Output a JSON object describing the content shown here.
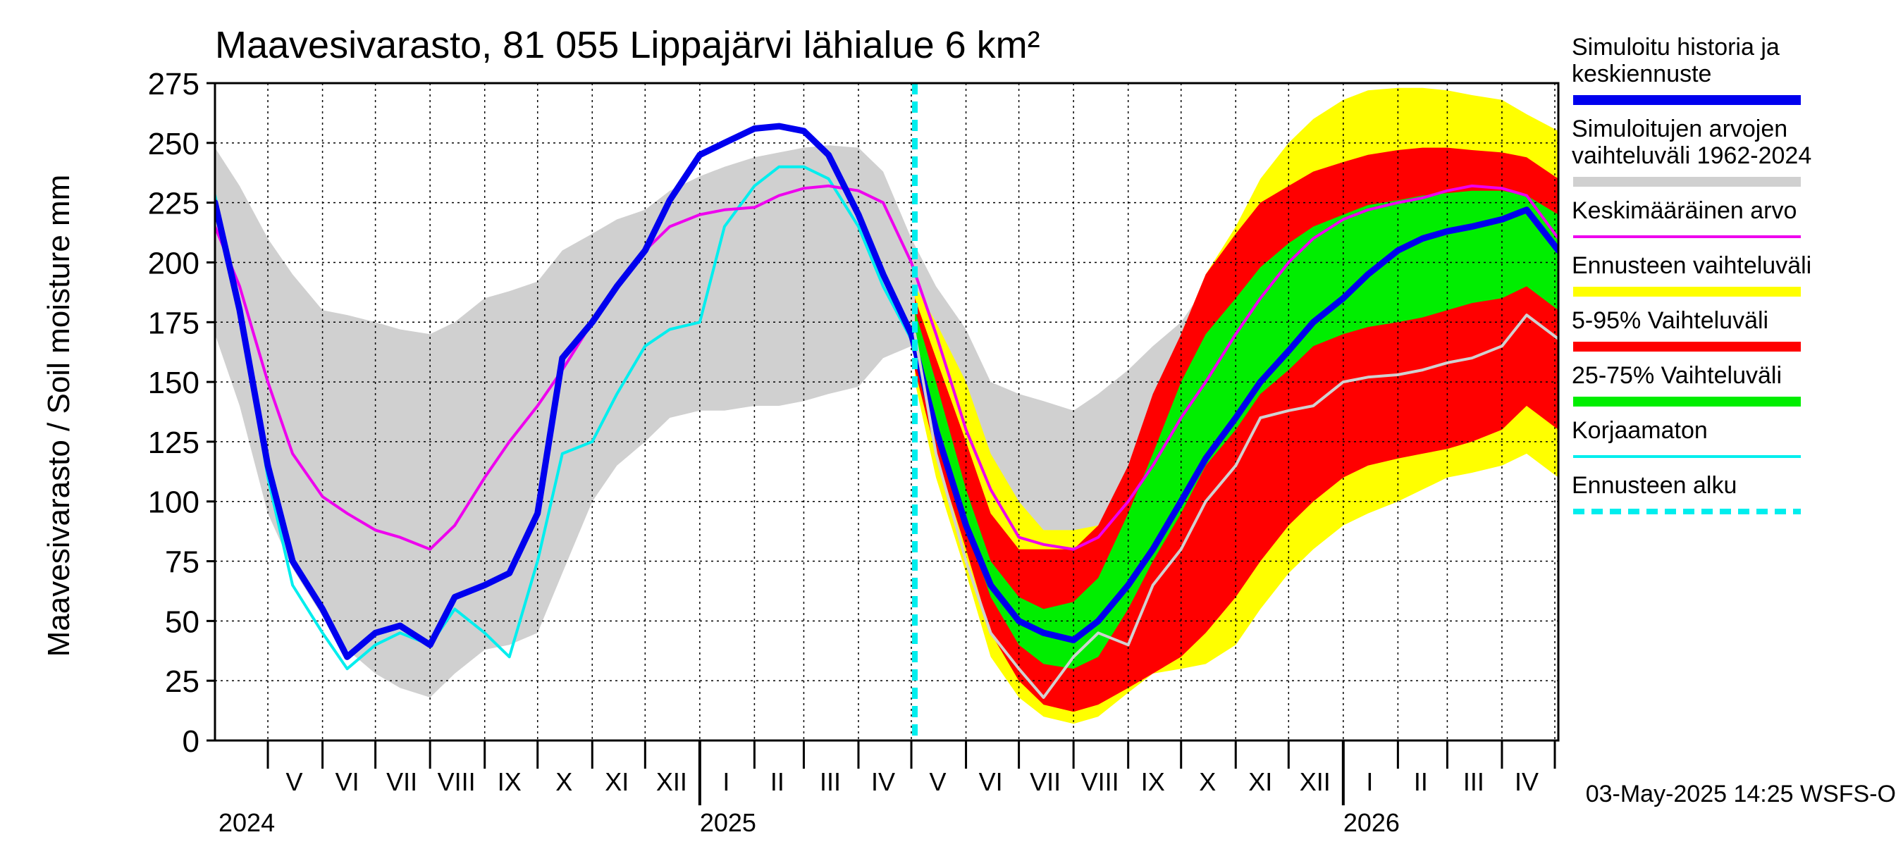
{
  "chart_data": {
    "type": "area",
    "title": "Maavesivarasto, 81 055 Lippajärvi lähialue 6 km²",
    "ylabel": "Maavesivarasto / Soil moisture   mm",
    "xlabel": "",
    "ylim": [
      0,
      275
    ],
    "yticks": [
      0,
      25,
      50,
      75,
      100,
      125,
      150,
      175,
      200,
      225,
      250,
      275
    ],
    "x_range": [
      "2024-04-01",
      "2026-05-03"
    ],
    "grid": true,
    "legend_position": "right",
    "footer": "03-May-2025 14:25 WSFS-O",
    "forecast_start": "2025-05-03",
    "month_labels": [
      {
        "label": "V",
        "date": "2024-05-16"
      },
      {
        "label": "VI",
        "date": "2024-06-15"
      },
      {
        "label": "VII",
        "date": "2024-07-16"
      },
      {
        "label": "VIII",
        "date": "2024-08-16"
      },
      {
        "label": "IX",
        "date": "2024-09-15"
      },
      {
        "label": "X",
        "date": "2024-10-16"
      },
      {
        "label": "XI",
        "date": "2024-11-15"
      },
      {
        "label": "XII",
        "date": "2024-12-16"
      },
      {
        "label": "I",
        "date": "2025-01-16"
      },
      {
        "label": "II",
        "date": "2025-02-14"
      },
      {
        "label": "III",
        "date": "2025-03-16"
      },
      {
        "label": "IV",
        "date": "2025-04-15"
      },
      {
        "label": "V",
        "date": "2025-05-16"
      },
      {
        "label": "VI",
        "date": "2025-06-15"
      },
      {
        "label": "VII",
        "date": "2025-07-16"
      },
      {
        "label": "VIII",
        "date": "2025-08-16"
      },
      {
        "label": "IX",
        "date": "2025-09-15"
      },
      {
        "label": "X",
        "date": "2025-10-16"
      },
      {
        "label": "XI",
        "date": "2025-11-15"
      },
      {
        "label": "XII",
        "date": "2025-12-16"
      },
      {
        "label": "I",
        "date": "2026-01-16"
      },
      {
        "label": "II",
        "date": "2026-02-14"
      },
      {
        "label": "III",
        "date": "2026-03-16"
      },
      {
        "label": "IV",
        "date": "2026-04-15"
      }
    ],
    "month_ticks": [
      "2024-05-01",
      "2024-06-01",
      "2024-07-01",
      "2024-08-01",
      "2024-09-01",
      "2024-10-01",
      "2024-11-01",
      "2024-12-01",
      "2025-01-01",
      "2025-02-01",
      "2025-03-01",
      "2025-04-01",
      "2025-05-01",
      "2025-06-01",
      "2025-07-01",
      "2025-08-01",
      "2025-09-01",
      "2025-10-01",
      "2025-11-01",
      "2025-12-01",
      "2026-01-01",
      "2026-02-01",
      "2026-03-01",
      "2026-04-01",
      "2026-05-01"
    ],
    "year_labels": [
      {
        "label": "2024",
        "date": "2024-04-03"
      },
      {
        "label": "2025",
        "date": "2025-01-01"
      },
      {
        "label": "2026",
        "date": "2026-01-01"
      }
    ],
    "year_ticks": [
      "2025-01-01",
      "2026-01-01"
    ],
    "legend": [
      {
        "label": "Simuloitu historia ja keskiennuste",
        "lines": [
          "Simuloitu historia ja",
          "keskiennuste"
        ],
        "color": "#0000ee",
        "style": "thick"
      },
      {
        "label": "Simuloitujen arvojen vaihteluväli 1962-2024",
        "lines": [
          "Simuloitujen arvojen",
          "vaihteluväli 1962-2024"
        ],
        "color": "#d0d0d0",
        "style": "thick"
      },
      {
        "label": "Keskimääräinen arvo",
        "lines": [
          "Keskimääräinen arvo"
        ],
        "color": "#ee00ee",
        "style": "thin"
      },
      {
        "label": "Ennusteen vaihteluväli",
        "lines": [
          "Ennusteen vaihteluväli"
        ],
        "color": "#ffff00",
        "style": "thick"
      },
      {
        "label": "5-95% Vaihteluväli",
        "lines": [
          "5-95% Vaihteluväli"
        ],
        "color": "#ff0000",
        "style": "thick"
      },
      {
        "label": "25-75% Vaihteluväli",
        "lines": [
          "25-75% Vaihteluväli"
        ],
        "color": "#00ee00",
        "style": "thick"
      },
      {
        "label": "Korjaamaton",
        "lines": [
          "Korjaamaton"
        ],
        "color": "#00eeee",
        "style": "thin"
      },
      {
        "label": "Ennusteen alku",
        "lines": [
          "Ennusteen alku"
        ],
        "color": "#00eeee",
        "style": "dashed"
      }
    ],
    "series": [
      {
        "name": "Simuloitujen arvojen vaihteluväli 1962-2024",
        "kind": "band",
        "color": "#d0d0d0",
        "x": [
          "2024-04-01",
          "2024-04-15",
          "2024-05-01",
          "2024-05-15",
          "2024-06-01",
          "2024-06-15",
          "2024-07-01",
          "2024-07-15",
          "2024-08-01",
          "2024-08-15",
          "2024-09-01",
          "2024-09-15",
          "2024-10-01",
          "2024-10-15",
          "2024-11-01",
          "2024-11-15",
          "2024-12-01",
          "2024-12-15",
          "2025-01-01",
          "2025-01-15",
          "2025-02-01",
          "2025-02-15",
          "2025-03-01",
          "2025-03-15",
          "2025-04-01",
          "2025-04-15",
          "2025-05-01",
          "2025-05-15",
          "2025-06-01",
          "2025-06-15",
          "2025-07-01",
          "2025-07-15",
          "2025-08-01",
          "2025-08-15",
          "2025-09-01",
          "2025-09-15",
          "2025-10-01",
          "2025-10-15",
          "2025-11-01",
          "2025-11-15",
          "2025-12-01",
          "2025-12-15",
          "2026-01-01",
          "2026-01-15",
          "2026-02-01",
          "2026-02-15",
          "2026-03-01",
          "2026-03-15",
          "2026-04-01",
          "2026-04-15",
          "2026-05-03"
        ],
        "upper": [
          248,
          232,
          210,
          195,
          180,
          178,
          175,
          172,
          170,
          175,
          185,
          188,
          192,
          205,
          212,
          218,
          222,
          230,
          236,
          240,
          244,
          246,
          248,
          249,
          248,
          238,
          210,
          190,
          172,
          150,
          145,
          142,
          138,
          145,
          155,
          165,
          175,
          190,
          205,
          218,
          228,
          236,
          240,
          244,
          246,
          248,
          249,
          250,
          248,
          240,
          235
        ],
        "lower": [
          170,
          140,
          95,
          72,
          52,
          38,
          28,
          22,
          18,
          28,
          38,
          40,
          45,
          70,
          100,
          115,
          125,
          135,
          138,
          138,
          140,
          140,
          142,
          145,
          148,
          160,
          165,
          150,
          120,
          70,
          40,
          28,
          22,
          25,
          30,
          35,
          45,
          60,
          80,
          95,
          110,
          120,
          130,
          138,
          140,
          142,
          145,
          148,
          150,
          160,
          165
        ]
      },
      {
        "name": "Ennusteen vaihteluväli",
        "kind": "band",
        "color": "#ffff00",
        "x": [
          "2025-05-03",
          "2025-05-15",
          "2025-06-01",
          "2025-06-15",
          "2025-07-01",
          "2025-07-15",
          "2025-08-01",
          "2025-08-15",
          "2025-09-01",
          "2025-09-15",
          "2025-10-01",
          "2025-10-15",
          "2025-11-01",
          "2025-11-15",
          "2025-12-01",
          "2025-12-15",
          "2026-01-01",
          "2026-01-15",
          "2026-02-01",
          "2026-02-15",
          "2026-03-01",
          "2026-03-15",
          "2026-04-01",
          "2026-04-15",
          "2026-05-03"
        ],
        "upper": [
          190,
          175,
          150,
          120,
          100,
          88,
          88,
          90,
          110,
          140,
          170,
          195,
          215,
          235,
          250,
          260,
          268,
          272,
          273,
          273,
          272,
          270,
          268,
          262,
          255
        ],
        "lower": [
          150,
          110,
          70,
          35,
          18,
          10,
          7,
          10,
          20,
          28,
          30,
          32,
          40,
          55,
          70,
          80,
          90,
          95,
          100,
          105,
          110,
          112,
          115,
          120,
          110
        ]
      },
      {
        "name": "5-95% Vaihteluväli",
        "kind": "band",
        "color": "#ff0000",
        "x": [
          "2025-05-03",
          "2025-05-15",
          "2025-06-01",
          "2025-06-15",
          "2025-07-01",
          "2025-07-15",
          "2025-08-01",
          "2025-08-15",
          "2025-09-01",
          "2025-09-15",
          "2025-10-01",
          "2025-10-15",
          "2025-11-01",
          "2025-11-15",
          "2025-12-01",
          "2025-12-15",
          "2026-01-01",
          "2026-01-15",
          "2026-02-01",
          "2026-02-15",
          "2026-03-01",
          "2026-03-15",
          "2026-04-01",
          "2026-04-15",
          "2026-05-03"
        ],
        "upper": [
          185,
          160,
          125,
          95,
          80,
          80,
          80,
          90,
          115,
          145,
          170,
          195,
          212,
          225,
          232,
          238,
          242,
          245,
          247,
          248,
          248,
          247,
          246,
          244,
          235
        ],
        "lower": [
          155,
          120,
          80,
          45,
          25,
          15,
          12,
          15,
          22,
          28,
          35,
          45,
          60,
          75,
          90,
          100,
          110,
          115,
          118,
          120,
          122,
          125,
          130,
          140,
          130
        ]
      },
      {
        "name": "25-75% Vaihteluväli",
        "kind": "band",
        "color": "#00ee00",
        "x": [
          "2025-05-03",
          "2025-05-15",
          "2025-06-01",
          "2025-06-15",
          "2025-07-01",
          "2025-07-15",
          "2025-08-01",
          "2025-08-15",
          "2025-09-01",
          "2025-09-15",
          "2025-10-01",
          "2025-10-15",
          "2025-11-01",
          "2025-11-15",
          "2025-12-01",
          "2025-12-15",
          "2026-01-01",
          "2026-01-15",
          "2026-02-01",
          "2026-02-15",
          "2026-03-01",
          "2026-03-15",
          "2026-04-01",
          "2026-04-15",
          "2026-05-03"
        ],
        "upper": [
          180,
          150,
          105,
          75,
          60,
          55,
          58,
          68,
          95,
          120,
          150,
          170,
          185,
          198,
          208,
          215,
          220,
          224,
          226,
          228,
          229,
          230,
          230,
          228,
          220
        ],
        "lower": [
          165,
          135,
          90,
          60,
          40,
          32,
          30,
          35,
          55,
          75,
          95,
          115,
          130,
          145,
          155,
          165,
          170,
          173,
          175,
          177,
          180,
          183,
          185,
          190,
          180
        ]
      },
      {
        "name": "Korjaamaton",
        "kind": "line",
        "color": "#00eeee",
        "width": 4,
        "x": [
          "2024-04-01",
          "2024-04-15",
          "2024-05-01",
          "2024-05-15",
          "2024-06-01",
          "2024-06-15",
          "2024-07-01",
          "2024-07-15",
          "2024-08-01",
          "2024-08-15",
          "2024-09-01",
          "2024-09-15",
          "2024-10-01",
          "2024-10-15",
          "2024-11-01",
          "2024-11-15",
          "2024-12-01",
          "2024-12-15",
          "2025-01-01",
          "2025-01-15",
          "2025-02-01",
          "2025-02-15",
          "2025-03-01",
          "2025-03-15",
          "2025-04-01",
          "2025-04-15",
          "2025-05-03"
        ],
        "y": [
          228,
          180,
          110,
          65,
          45,
          30,
          40,
          45,
          40,
          55,
          45,
          35,
          75,
          120,
          125,
          145,
          165,
          172,
          175,
          215,
          232,
          240,
          240,
          235,
          215,
          190,
          165
        ]
      },
      {
        "name": "Keskimääräinen arvo",
        "kind": "line",
        "color": "#ee00ee",
        "width": 4,
        "x": [
          "2024-04-01",
          "2024-04-15",
          "2024-05-01",
          "2024-05-15",
          "2024-06-01",
          "2024-06-15",
          "2024-07-01",
          "2024-07-15",
          "2024-08-01",
          "2024-08-15",
          "2024-09-01",
          "2024-09-15",
          "2024-10-01",
          "2024-10-15",
          "2024-11-01",
          "2024-11-15",
          "2024-12-01",
          "2024-12-15",
          "2025-01-01",
          "2025-01-15",
          "2025-02-01",
          "2025-02-15",
          "2025-03-01",
          "2025-03-15",
          "2025-04-01",
          "2025-04-15",
          "2025-05-01",
          "2025-05-15",
          "2025-06-01",
          "2025-06-15",
          "2025-07-01",
          "2025-07-15",
          "2025-08-01",
          "2025-08-15",
          "2025-09-01",
          "2025-09-15",
          "2025-10-01",
          "2025-10-15",
          "2025-11-01",
          "2025-11-15",
          "2025-12-01",
          "2025-12-15",
          "2026-01-01",
          "2026-01-15",
          "2026-02-01",
          "2026-02-15",
          "2026-03-01",
          "2026-03-15",
          "2026-04-01",
          "2026-04-15",
          "2026-05-03"
        ],
        "y": [
          215,
          190,
          150,
          120,
          102,
          95,
          88,
          85,
          80,
          90,
          110,
          125,
          140,
          155,
          175,
          190,
          205,
          215,
          220,
          222,
          223,
          228,
          231,
          232,
          230,
          225,
          200,
          170,
          130,
          105,
          85,
          82,
          80,
          85,
          100,
          115,
          135,
          150,
          170,
          185,
          200,
          210,
          218,
          222,
          225,
          227,
          230,
          232,
          231,
          228,
          210
        ]
      },
      {
        "name": "Simuloitu historia ja keskiennuste",
        "kind": "line",
        "color": "#0000ee",
        "width": 9,
        "x": [
          "2024-04-01",
          "2024-04-15",
          "2024-05-01",
          "2024-05-15",
          "2024-06-01",
          "2024-06-15",
          "2024-07-01",
          "2024-07-15",
          "2024-08-01",
          "2024-08-15",
          "2024-09-01",
          "2024-09-15",
          "2024-10-01",
          "2024-10-15",
          "2024-11-01",
          "2024-11-15",
          "2024-12-01",
          "2024-12-15",
          "2025-01-01",
          "2025-01-15",
          "2025-02-01",
          "2025-02-15",
          "2025-03-01",
          "2025-03-15",
          "2025-04-01",
          "2025-04-15",
          "2025-05-01",
          "2025-05-15",
          "2025-06-01",
          "2025-06-15",
          "2025-07-01",
          "2025-07-15",
          "2025-08-01",
          "2025-08-15",
          "2025-09-01",
          "2025-09-15",
          "2025-10-01",
          "2025-10-15",
          "2025-11-01",
          "2025-11-15",
          "2025-12-01",
          "2025-12-15",
          "2026-01-01",
          "2026-01-15",
          "2026-02-01",
          "2026-02-15",
          "2026-03-01",
          "2026-03-15",
          "2026-04-01",
          "2026-04-15",
          "2026-05-03"
        ],
        "y": [
          225,
          180,
          115,
          75,
          55,
          35,
          45,
          48,
          40,
          60,
          65,
          70,
          95,
          160,
          175,
          190,
          205,
          226,
          245,
          250,
          256,
          257,
          255,
          245,
          220,
          195,
          170,
          130,
          90,
          65,
          50,
          45,
          42,
          50,
          65,
          80,
          100,
          118,
          135,
          150,
          163,
          175,
          185,
          195,
          205,
          210,
          213,
          215,
          218,
          222,
          205
        ]
      },
      {
        "name": "Simuloitu",
        "kind": "line",
        "color": "#d0d0d0",
        "width": 4,
        "x": [
          "2025-05-03",
          "2025-05-15",
          "2025-06-01",
          "2025-06-15",
          "2025-07-01",
          "2025-07-15",
          "2025-08-01",
          "2025-08-15",
          "2025-09-01",
          "2025-09-15",
          "2025-10-01",
          "2025-10-15",
          "2025-11-01",
          "2025-11-15",
          "2025-12-01",
          "2025-12-15",
          "2026-01-01",
          "2026-01-15",
          "2026-02-01",
          "2026-02-15",
          "2026-03-01",
          "2026-03-15",
          "2026-04-01",
          "2026-04-15",
          "2026-05-03"
        ],
        "y": [
          170,
          120,
          75,
          45,
          30,
          18,
          35,
          45,
          40,
          65,
          80,
          100,
          115,
          135,
          138,
          140,
          150,
          152,
          153,
          155,
          158,
          160,
          165,
          178,
          168
        ]
      }
    ]
  }
}
